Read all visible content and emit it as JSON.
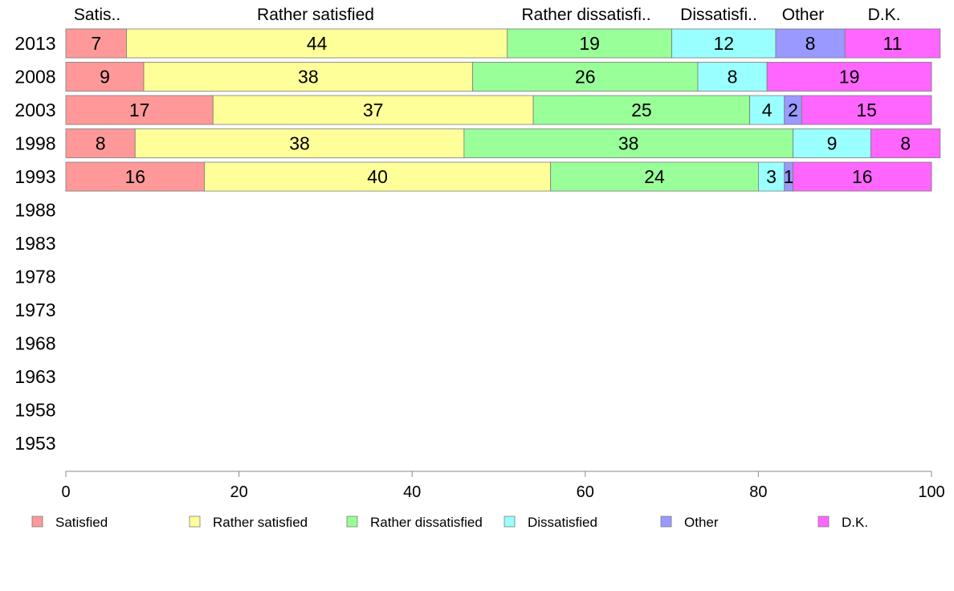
{
  "chart_data": {
    "type": "bar",
    "orientation": "horizontal",
    "stacked": true,
    "categories": [
      "2013",
      "2008",
      "2003",
      "1998",
      "1993",
      "1988",
      "1983",
      "1978",
      "1973",
      "1968",
      "1963",
      "1958",
      "1953"
    ],
    "column_headers": [
      "Satis..",
      "Rather satisfied",
      "Rather dissatisfi..",
      "Dissatisfi..",
      "Other",
      "D.K."
    ],
    "series": [
      {
        "name": "Satisfied",
        "color": "#ff9999",
        "values": [
          7,
          9,
          17,
          8,
          16,
          null,
          null,
          null,
          null,
          null,
          null,
          null,
          null
        ]
      },
      {
        "name": "Rather satisfied",
        "color": "#ffff99",
        "values": [
          44,
          38,
          37,
          38,
          40,
          null,
          null,
          null,
          null,
          null,
          null,
          null,
          null
        ]
      },
      {
        "name": "Rather dissatisfied",
        "color": "#99ff99",
        "values": [
          19,
          26,
          25,
          38,
          24,
          null,
          null,
          null,
          null,
          null,
          null,
          null,
          null
        ]
      },
      {
        "name": "Dissatisfied",
        "color": "#99ffff",
        "values": [
          12,
          8,
          4,
          9,
          3,
          null,
          null,
          null,
          null,
          null,
          null,
          null,
          null
        ]
      },
      {
        "name": "Other",
        "color": "#9999ff",
        "values": [
          8,
          0,
          2,
          0,
          1,
          null,
          null,
          null,
          null,
          null,
          null,
          null,
          null
        ]
      },
      {
        "name": "D.K.",
        "color": "#ff66ff",
        "values": [
          11,
          19,
          15,
          8,
          16,
          null,
          null,
          null,
          null,
          null,
          null,
          null,
          null
        ]
      }
    ],
    "xlim": [
      0,
      100
    ],
    "xticks": [
      0,
      20,
      40,
      60,
      80,
      100
    ],
    "grid": false,
    "legend_position": "bottom"
  }
}
